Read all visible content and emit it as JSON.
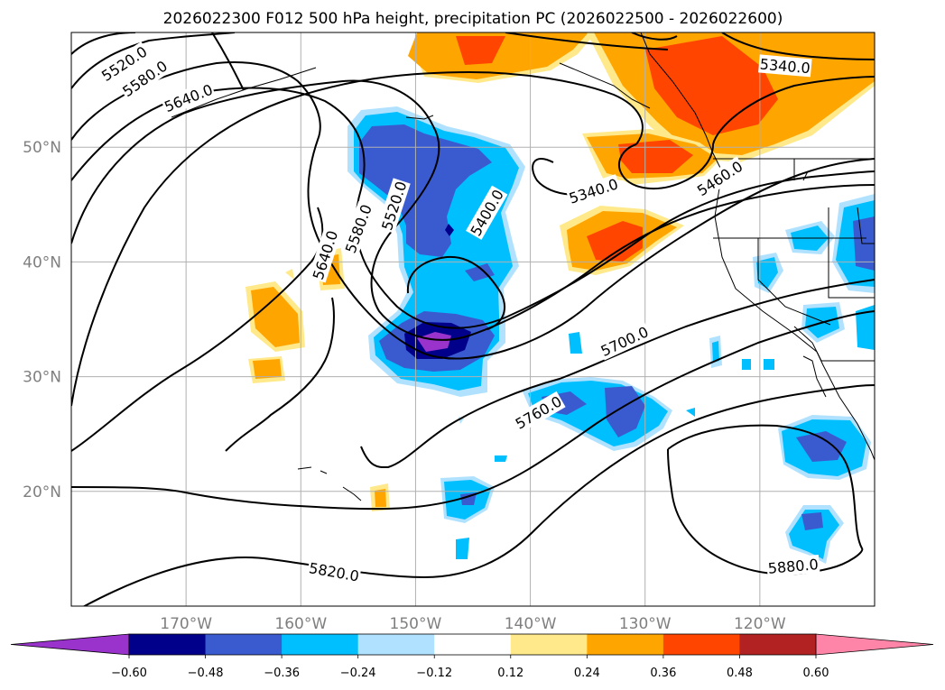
{
  "title": "2026022300 F012 500 hPa height, precipitation PC (2026022500 - 2026022600)",
  "map": {
    "lon_range": [
      -180,
      -110
    ],
    "lat_range": [
      10,
      60
    ],
    "lat_ticks": [
      {
        "lat": 50,
        "label": "50°N"
      },
      {
        "lat": 40,
        "label": "40°N"
      },
      {
        "lat": 30,
        "label": "30°N"
      },
      {
        "lat": 20,
        "label": "20°N"
      }
    ],
    "lon_ticks": [
      {
        "lon": -170,
        "label": "170°W"
      },
      {
        "lon": -160,
        "label": "160°W"
      },
      {
        "lon": -150,
        "label": "150°W"
      },
      {
        "lon": -140,
        "label": "140°W"
      },
      {
        "lon": -130,
        "label": "130°W"
      },
      {
        "lon": -120,
        "label": "120°W"
      }
    ]
  },
  "contours": {
    "variable": "500 hPa height",
    "labels": [
      {
        "text": "5520.0",
        "lon": -175.4,
        "lat": 57.3,
        "rot": -33
      },
      {
        "text": "5580.0",
        "lon": -173.6,
        "lat": 56.0,
        "rot": -35
      },
      {
        "text": "5640.0",
        "lon": -169.8,
        "lat": 54.3,
        "rot": -22
      },
      {
        "text": "5340.0",
        "lon": -117.8,
        "lat": 57.1,
        "rot": 5
      },
      {
        "text": "5340.0",
        "lon": -134.5,
        "lat": 46.2,
        "rot": -18
      },
      {
        "text": "5460.0",
        "lon": -123.5,
        "lat": 47.3,
        "rot": -33
      },
      {
        "text": "5400.0",
        "lon": -143.8,
        "lat": 44.3,
        "rot": -60
      },
      {
        "text": "5520.0",
        "lon": -151.9,
        "lat": 44.9,
        "rot": -72
      },
      {
        "text": "5580.0",
        "lon": -155.0,
        "lat": 42.9,
        "rot": -70
      },
      {
        "text": "5640.0",
        "lon": -157.9,
        "lat": 40.6,
        "rot": -72
      },
      {
        "text": "5700.0",
        "lon": -131.8,
        "lat": 33.1,
        "rot": -25
      },
      {
        "text": "5760.0",
        "lon": -139.3,
        "lat": 26.9,
        "rot": -30
      },
      {
        "text": "5820.0",
        "lon": -157.1,
        "lat": 13.0,
        "rot": 10
      },
      {
        "text": "5880.0",
        "lon": -117.1,
        "lat": 13.5,
        "rot": -5
      }
    ]
  },
  "colorbar": {
    "colors": [
      "#9933cc",
      "#00008b",
      "#3a5bd0",
      "#00bfff",
      "#b0e2ff",
      "#ffffff",
      "#ffe98a",
      "#ffa500",
      "#ff4500",
      "#b22222",
      "#ff85a8"
    ],
    "tick_labels": [
      "−0.60",
      "−0.48",
      "−0.36",
      "−0.24",
      "−0.12",
      "0.12",
      "0.24",
      "0.36",
      "0.48",
      "0.60"
    ]
  },
  "precip_shading": [
    {
      "level": 0.24,
      "color": "#ffa500"
    },
    {
      "level": 0.36,
      "color": "#ff4500"
    },
    {
      "level": -0.24,
      "color": "#00bfff"
    },
    {
      "level": -0.36,
      "color": "#3a5bd0"
    },
    {
      "level": -0.48,
      "color": "#00008b"
    },
    {
      "level": -0.6,
      "color": "#9933cc"
    }
  ]
}
